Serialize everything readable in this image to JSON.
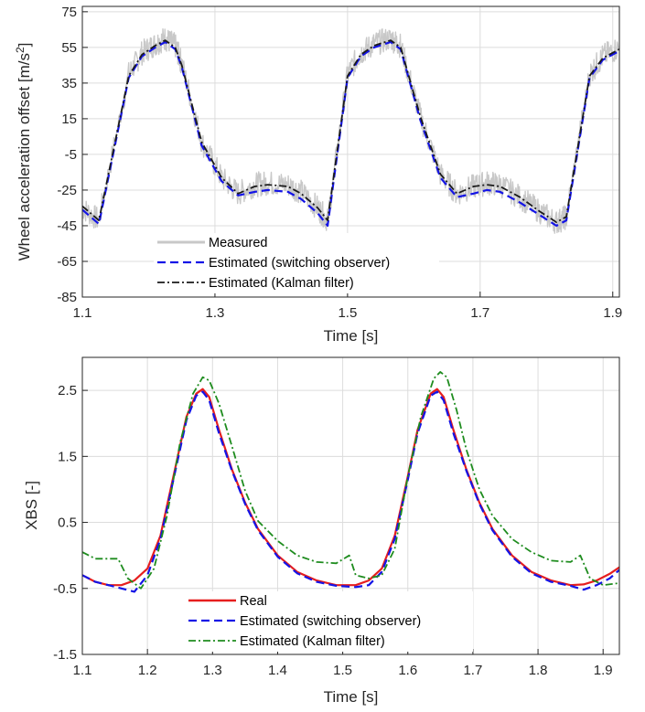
{
  "chart_data": [
    {
      "type": "line",
      "xlabel": "Time [s]",
      "ylabel": "Wheel acceleration offset [m/s",
      "ylabel_sup": "2",
      "ylabel_end": "]",
      "xlim": [
        1.1,
        1.91
      ],
      "ylim": [
        -85,
        78
      ],
      "xticks": [
        1.1,
        1.3,
        1.5,
        1.7,
        1.9
      ],
      "xtick_labels": [
        "1.1",
        "1.3",
        "1.5",
        "1.7",
        "1.9"
      ],
      "yticks": [
        -85,
        -65,
        -45,
        -25,
        -5,
        15,
        35,
        55,
        75
      ],
      "ytick_labels": [
        "-85",
        "-65",
        "-45",
        "-25",
        "-5",
        "15",
        "35",
        "55",
        "75"
      ],
      "grid": true,
      "legend_position": "bottom-center",
      "series": [
        {
          "name": "Measured",
          "color": "#c8c8c8",
          "style": "solid",
          "band": 7,
          "x": [
            1.1,
            1.125,
            1.17,
            1.19,
            1.21,
            1.225,
            1.24,
            1.25,
            1.28,
            1.31,
            1.335,
            1.36,
            1.38,
            1.41,
            1.43,
            1.455,
            1.47,
            1.5,
            1.52,
            1.54,
            1.565,
            1.58,
            1.61,
            1.64,
            1.665,
            1.69,
            1.71,
            1.73,
            1.76,
            1.79,
            1.815,
            1.83,
            1.865,
            1.885,
            1.91
          ],
          "y": [
            -35,
            -42,
            40,
            52,
            57,
            60,
            56,
            46,
            2,
            -18,
            -27,
            -22,
            -21,
            -22,
            -26,
            -35,
            -42,
            40,
            52,
            57,
            60,
            56,
            16,
            -16,
            -27,
            -23,
            -21,
            -22,
            -29,
            -37,
            -43,
            -40,
            40,
            50,
            55
          ]
        },
        {
          "name": "Estimated (switching observer)",
          "color": "#1414e6",
          "style": "dashed",
          "x": [
            1.1,
            1.125,
            1.17,
            1.19,
            1.21,
            1.225,
            1.24,
            1.25,
            1.28,
            1.31,
            1.335,
            1.36,
            1.38,
            1.41,
            1.43,
            1.455,
            1.47,
            1.5,
            1.52,
            1.54,
            1.565,
            1.58,
            1.61,
            1.64,
            1.665,
            1.69,
            1.71,
            1.73,
            1.76,
            1.79,
            1.815,
            1.83,
            1.865,
            1.885,
            1.91
          ],
          "y": [
            -36,
            -44,
            38,
            50,
            55,
            58,
            54,
            44,
            0,
            -20,
            -28,
            -26,
            -25,
            -26,
            -30,
            -38,
            -45,
            38,
            50,
            55,
            58,
            54,
            14,
            -18,
            -29,
            -27,
            -25,
            -26,
            -32,
            -39,
            -45,
            -42,
            38,
            48,
            53
          ]
        },
        {
          "name": "Estimated (Kalman filter)",
          "color": "#1a1a1a",
          "style": "dashdot",
          "x": [
            1.1,
            1.125,
            1.17,
            1.19,
            1.21,
            1.225,
            1.24,
            1.25,
            1.28,
            1.31,
            1.335,
            1.36,
            1.38,
            1.41,
            1.43,
            1.455,
            1.47,
            1.5,
            1.52,
            1.54,
            1.565,
            1.58,
            1.61,
            1.64,
            1.665,
            1.69,
            1.71,
            1.73,
            1.76,
            1.79,
            1.815,
            1.83,
            1.865,
            1.885,
            1.91
          ],
          "y": [
            -34,
            -42,
            39,
            51,
            56,
            59,
            55,
            45,
            2,
            -18,
            -27,
            -23,
            -22,
            -23,
            -27,
            -35,
            -42,
            39,
            51,
            56,
            59,
            55,
            16,
            -16,
            -27,
            -23,
            -22,
            -23,
            -29,
            -37,
            -43,
            -40,
            39,
            49,
            54
          ]
        }
      ]
    },
    {
      "type": "line",
      "xlabel": "Time [s]",
      "ylabel": "XBS [-]",
      "xlim": [
        1.1,
        1.925
      ],
      "ylim": [
        -1.5,
        3.0
      ],
      "xticks": [
        1.1,
        1.2,
        1.3,
        1.4,
        1.5,
        1.6,
        1.7,
        1.8,
        1.9
      ],
      "xtick_labels": [
        "1.1",
        "1.2",
        "1.3",
        "1.4",
        "1.5",
        "1.6",
        "1.7",
        "1.8",
        "1.9"
      ],
      "yticks": [
        -1.5,
        -0.5,
        0.5,
        1.5,
        2.5
      ],
      "ytick_labels": [
        "-1.5",
        "-0.5",
        "0.5",
        "1.5",
        "2.5"
      ],
      "grid": true,
      "legend_position": "bottom-center",
      "series": [
        {
          "name": "Real",
          "color": "#e61e1e",
          "style": "solid",
          "x": [
            1.1,
            1.12,
            1.14,
            1.16,
            1.18,
            1.2,
            1.22,
            1.24,
            1.26,
            1.275,
            1.285,
            1.295,
            1.31,
            1.33,
            1.35,
            1.37,
            1.4,
            1.43,
            1.46,
            1.49,
            1.52,
            1.54,
            1.56,
            1.58,
            1.6,
            1.615,
            1.635,
            1.645,
            1.655,
            1.67,
            1.69,
            1.71,
            1.73,
            1.76,
            1.79,
            1.82,
            1.85,
            1.87,
            1.89,
            1.91,
            1.925
          ],
          "y": [
            -0.3,
            -0.4,
            -0.45,
            -0.45,
            -0.38,
            -0.2,
            0.3,
            1.2,
            2.1,
            2.45,
            2.52,
            2.4,
            1.9,
            1.3,
            0.8,
            0.4,
            0.0,
            -0.25,
            -0.38,
            -0.45,
            -0.45,
            -0.38,
            -0.2,
            0.3,
            1.2,
            1.9,
            2.45,
            2.52,
            2.4,
            1.9,
            1.3,
            0.8,
            0.4,
            0.0,
            -0.25,
            -0.38,
            -0.45,
            -0.44,
            -0.38,
            -0.28,
            -0.18
          ]
        },
        {
          "name": "Estimated (switching observer)",
          "color": "#1414e6",
          "style": "dashed",
          "x": [
            1.1,
            1.12,
            1.14,
            1.16,
            1.18,
            1.2,
            1.22,
            1.24,
            1.26,
            1.275,
            1.285,
            1.295,
            1.31,
            1.33,
            1.35,
            1.37,
            1.4,
            1.43,
            1.46,
            1.49,
            1.52,
            1.54,
            1.56,
            1.58,
            1.6,
            1.615,
            1.635,
            1.645,
            1.655,
            1.67,
            1.69,
            1.71,
            1.73,
            1.76,
            1.79,
            1.82,
            1.85,
            1.87,
            1.89,
            1.91,
            1.925
          ],
          "y": [
            -0.3,
            -0.4,
            -0.45,
            -0.5,
            -0.55,
            -0.3,
            0.25,
            1.15,
            2.05,
            2.42,
            2.48,
            2.35,
            1.85,
            1.28,
            0.78,
            0.38,
            -0.02,
            -0.27,
            -0.4,
            -0.46,
            -0.48,
            -0.45,
            -0.25,
            0.25,
            1.15,
            1.85,
            2.42,
            2.48,
            2.35,
            1.85,
            1.28,
            0.78,
            0.38,
            -0.02,
            -0.27,
            -0.4,
            -0.46,
            -0.52,
            -0.45,
            -0.35,
            -0.22
          ]
        },
        {
          "name": "Estimated (Kalman filter)",
          "color": "#1e8c1e",
          "style": "dashdot",
          "x": [
            1.1,
            1.12,
            1.14,
            1.155,
            1.17,
            1.19,
            1.21,
            1.23,
            1.25,
            1.27,
            1.285,
            1.295,
            1.31,
            1.33,
            1.35,
            1.37,
            1.4,
            1.43,
            1.46,
            1.49,
            1.51,
            1.52,
            1.54,
            1.56,
            1.58,
            1.6,
            1.62,
            1.64,
            1.65,
            1.66,
            1.675,
            1.69,
            1.71,
            1.73,
            1.76,
            1.79,
            1.82,
            1.85,
            1.865,
            1.88,
            1.9,
            1.925
          ],
          "y": [
            0.05,
            -0.05,
            -0.05,
            -0.05,
            -0.35,
            -0.5,
            -0.2,
            0.6,
            1.7,
            2.45,
            2.7,
            2.65,
            2.3,
            1.65,
            0.98,
            0.52,
            0.22,
            0.0,
            -0.1,
            -0.12,
            0.0,
            -0.3,
            -0.35,
            -0.3,
            0.1,
            1.2,
            2.1,
            2.68,
            2.78,
            2.7,
            2.2,
            1.6,
            1.0,
            0.6,
            0.25,
            0.05,
            -0.08,
            -0.1,
            0.0,
            -0.35,
            -0.45,
            -0.42
          ]
        }
      ]
    }
  ]
}
